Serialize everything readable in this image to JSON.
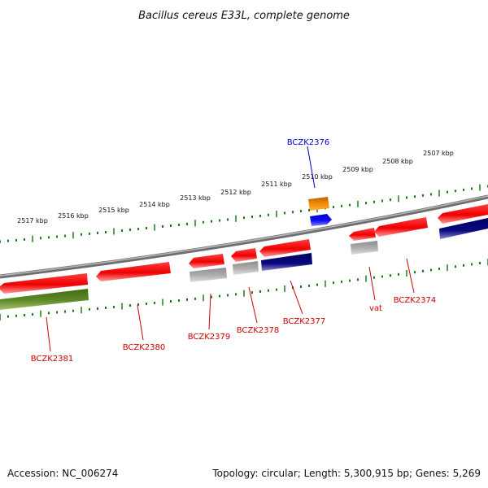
{
  "title": "Bacillus cereus E33L, complete genome",
  "accession": "Accession: NC_006274",
  "summary": "Topology: circular; Length: 5,300,915 bp; Genes: 5,269",
  "colors": {
    "backbone": "#8a8a8a",
    "tick": "#1a7a1a",
    "red_gene": "#ee1111",
    "gray_gene": "#a8a8a8",
    "navy_gene": "#0a0a80",
    "olive_gene": "#5f8a28",
    "orange_gene": "#ee8800",
    "blue_gene": "#1010ee",
    "label_red": "#cc0000",
    "label_blue": "#0000cc"
  },
  "kbp_labels": [
    "2517 kbp",
    "2516 kbp",
    "2515 kbp",
    "2514 kbp",
    "2513 kbp",
    "2512 kbp",
    "2511 kbp",
    "2510 kbp",
    "2509 kbp",
    "2508 kbp",
    "2507 kbp"
  ],
  "gene_labels": {
    "bczk2376": "BCZK2376",
    "bczk2381": "BCZK2381",
    "bczk2380": "BCZK2380",
    "bczk2379": "BCZK2379",
    "bczk2378": "BCZK2378",
    "bczk2377": "BCZK2377",
    "vat": "vat",
    "bczk2374": "BCZK2374"
  }
}
